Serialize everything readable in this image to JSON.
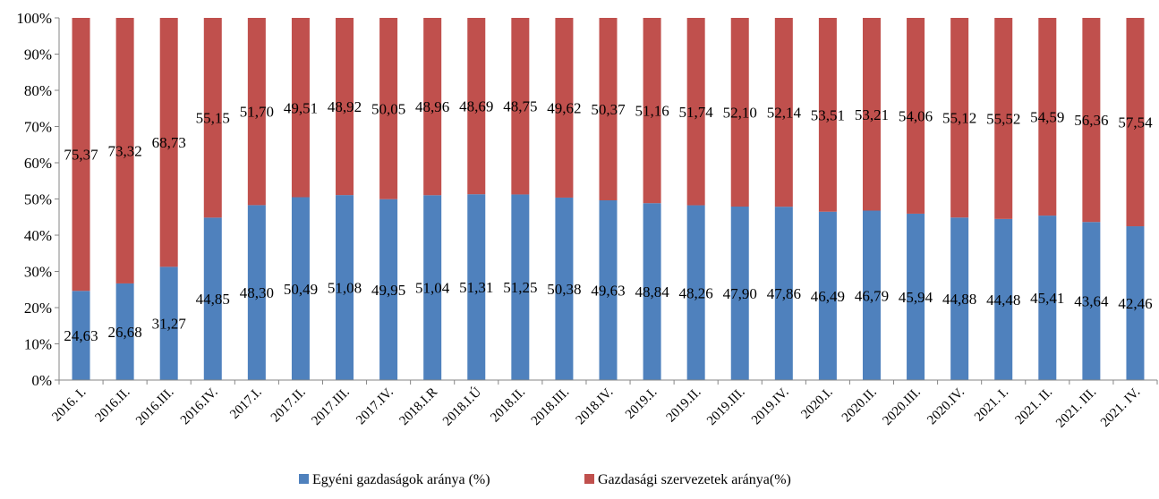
{
  "chart_data": {
    "type": "bar",
    "stacked": true,
    "percent_stacked": true,
    "ylim": [
      0,
      100
    ],
    "y_ticks": [
      "0%",
      "10%",
      "20%",
      "30%",
      "40%",
      "50%",
      "60%",
      "70%",
      "80%",
      "90%",
      "100%"
    ],
    "grid": false,
    "legend_position": "bottom",
    "categories": [
      "2016. I.",
      "2016.II.",
      "2016.III.",
      "2016.IV.",
      "2017.I.",
      "2017.II.",
      "2017.III.",
      "2017.IV.",
      "2018.I.R",
      "2018.I.Ú",
      "2018.II.",
      "2018.III.",
      "2018.IV.",
      "2019.I.",
      "2019.II.",
      "2019.III.",
      "2019.IV.",
      "2020.I.",
      "2020.II.",
      "2020.III.",
      "2020.IV.",
      "2021. I.",
      "2021. II.",
      "2021. III.",
      "2021. IV."
    ],
    "series": [
      {
        "name": "Egyéni gazdaságok aránya (%)",
        "color": "#4f81bd",
        "values": [
          24.63,
          26.68,
          31.27,
          44.85,
          48.3,
          50.49,
          51.08,
          49.95,
          51.04,
          51.31,
          51.25,
          50.38,
          49.63,
          48.84,
          48.26,
          47.9,
          47.86,
          46.49,
          46.79,
          45.94,
          44.88,
          44.48,
          45.41,
          43.64,
          42.46
        ],
        "labels": [
          "24,63",
          "26,68",
          "31,27",
          "44,85",
          "48,30",
          "50,49",
          "51,08",
          "49,95",
          "51,04",
          "51,31",
          "51,25",
          "50,38",
          "49,63",
          "48,84",
          "48,26",
          "47,90",
          "47,86",
          "46,49",
          "46,79",
          "45,94",
          "44,88",
          "44,48",
          "45,41",
          "43,64",
          "42,46"
        ]
      },
      {
        "name": "Gazdasági szervezetek aránya(%)",
        "color": "#c0504d",
        "values": [
          75.37,
          73.32,
          68.73,
          55.15,
          51.7,
          49.51,
          48.92,
          50.05,
          48.96,
          48.69,
          48.75,
          49.62,
          50.37,
          51.16,
          51.74,
          52.1,
          52.14,
          53.51,
          53.21,
          54.06,
          55.12,
          55.52,
          54.59,
          56.36,
          57.54
        ],
        "labels": [
          "75,37",
          "73,32",
          "68,73",
          "55,15",
          "51,70",
          "49,51",
          "48,92",
          "50,05",
          "48,96",
          "48,69",
          "48,75",
          "49,62",
          "50,37",
          "51,16",
          "51,74",
          "52,10",
          "52,14",
          "53,51",
          "53,21",
          "54,06",
          "55,12",
          "55,52",
          "54,59",
          "56,36",
          "57,54"
        ]
      }
    ]
  }
}
